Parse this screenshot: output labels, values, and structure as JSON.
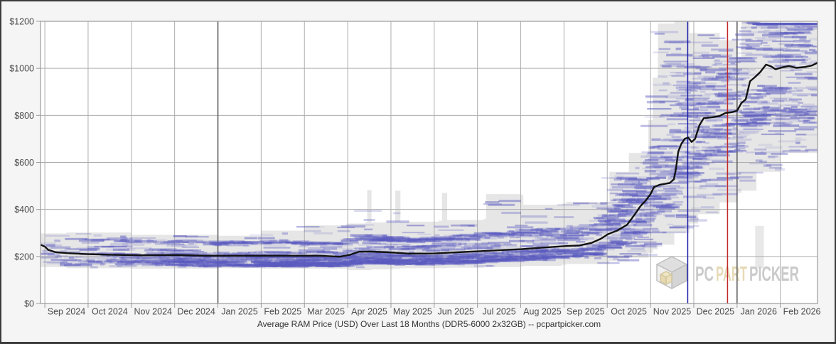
{
  "chart_data": {
    "type": "line",
    "title": "Average RAM Price (USD) Over Last 18 Months (DDR5-6000 2x32GB) -- pcpartpicker.com",
    "xlabel": "",
    "ylabel": "",
    "ylim": [
      0,
      1200
    ],
    "y_values": [
      0,
      200,
      400,
      600,
      800,
      1000,
      1200
    ],
    "y_ticks": [
      "$0",
      "$200",
      "$400",
      "$600",
      "$800",
      "$1000",
      "$1200"
    ],
    "x_range_months": [
      -0.1,
      17.86
    ],
    "month_labels": [
      "Sep 2024",
      "Oct 2024",
      "Nov 2024",
      "Dec 2024",
      "Jan 2025",
      "Feb 2025",
      "Mar 2025",
      "Apr 2025",
      "May 2025",
      "Jun 2025",
      "Jul 2025",
      "Aug 2025",
      "Sep 2025",
      "Oct 2025",
      "Nov 2025",
      "Dec 2025",
      "Jan 2026",
      "Feb 2026"
    ],
    "year_boundary_months": [
      4,
      16
    ],
    "grid": true,
    "legend": "none",
    "series": [
      {
        "name": "average-price",
        "color": "#121212",
        "points": [
          [
            -0.1,
            250
          ],
          [
            0,
            242
          ],
          [
            0.08,
            228
          ],
          [
            0.25,
            218
          ],
          [
            0.53,
            214
          ],
          [
            0.99,
            210
          ],
          [
            1.59,
            207
          ],
          [
            2.25,
            205
          ],
          [
            3.04,
            206
          ],
          [
            3.73,
            203
          ],
          [
            4.55,
            203
          ],
          [
            5.46,
            203
          ],
          [
            6.36,
            203
          ],
          [
            6.82,
            199
          ],
          [
            7.05,
            207
          ],
          [
            7.26,
            220
          ],
          [
            7.51,
            221
          ],
          [
            7.92,
            218
          ],
          [
            8.41,
            212
          ],
          [
            9.01,
            213
          ],
          [
            9.56,
            218
          ],
          [
            10.01,
            222
          ],
          [
            10.55,
            227
          ],
          [
            11.01,
            231
          ],
          [
            11.53,
            238
          ],
          [
            12.01,
            244
          ],
          [
            12.36,
            247
          ],
          [
            12.64,
            258
          ],
          [
            12.85,
            275
          ],
          [
            13.02,
            295
          ],
          [
            13.23,
            310
          ],
          [
            13.46,
            335
          ],
          [
            13.64,
            380
          ],
          [
            13.76,
            412
          ],
          [
            13.89,
            438
          ],
          [
            14.0,
            465
          ],
          [
            14.08,
            495
          ],
          [
            14.21,
            505
          ],
          [
            14.44,
            512
          ],
          [
            14.54,
            528
          ],
          [
            14.59,
            575
          ],
          [
            14.64,
            645
          ],
          [
            14.71,
            678
          ],
          [
            14.79,
            700
          ],
          [
            14.87,
            706
          ],
          [
            14.95,
            687
          ],
          [
            15.03,
            700
          ],
          [
            15.13,
            758
          ],
          [
            15.23,
            788
          ],
          [
            15.43,
            792
          ],
          [
            15.59,
            797
          ],
          [
            15.73,
            810
          ],
          [
            15.89,
            814
          ],
          [
            16.0,
            820
          ],
          [
            16.1,
            852
          ],
          [
            16.2,
            868
          ],
          [
            16.3,
            945
          ],
          [
            16.41,
            962
          ],
          [
            16.54,
            985
          ],
          [
            16.67,
            1016
          ],
          [
            16.79,
            1008
          ],
          [
            16.89,
            996
          ],
          [
            17.04,
            1004
          ],
          [
            17.2,
            1010
          ],
          [
            17.37,
            1002
          ],
          [
            17.57,
            1006
          ],
          [
            17.73,
            1012
          ],
          [
            17.86,
            1024
          ]
        ]
      }
    ],
    "range_band": {
      "color": "#e4e4e4",
      "opacity": 0.92,
      "points": [
        [
          -0.1,
          155,
          298
        ],
        [
          0.5,
          150,
          302
        ],
        [
          2.0,
          148,
          292
        ],
        [
          4.0,
          150,
          288
        ],
        [
          5.0,
          148,
          310
        ],
        [
          6.0,
          148,
          332
        ],
        [
          7.0,
          142,
          340
        ],
        [
          7.4,
          142,
          345
        ],
        [
          7.45,
          142,
          482
        ],
        [
          7.55,
          145,
          345
        ],
        [
          8.05,
          148,
          348
        ],
        [
          8.1,
          148,
          480
        ],
        [
          8.22,
          150,
          348
        ],
        [
          9.1,
          150,
          352
        ],
        [
          9.18,
          150,
          470
        ],
        [
          9.3,
          152,
          355
        ],
        [
          10.15,
          155,
          360
        ],
        [
          10.2,
          155,
          465
        ],
        [
          11.0,
          158,
          462
        ],
        [
          11.06,
          160,
          420
        ],
        [
          11.95,
          165,
          425
        ],
        [
          12.05,
          168,
          432
        ],
        [
          13.05,
          180,
          560
        ],
        [
          13.5,
          195,
          640
        ],
        [
          13.95,
          215,
          780
        ],
        [
          14.05,
          230,
          960
        ],
        [
          14.17,
          250,
          1190
        ],
        [
          14.55,
          300,
          1200
        ],
        [
          14.9,
          340,
          1150
        ],
        [
          15.1,
          380,
          1150
        ],
        [
          15.6,
          430,
          1120
        ],
        [
          16.0,
          470,
          1050
        ],
        [
          16.1,
          480,
          1200
        ],
        [
          16.45,
          560,
          1195
        ],
        [
          17.0,
          640,
          1195
        ],
        [
          17.86,
          660,
          1200
        ]
      ]
    },
    "extra_band_rects": [
      [
        16.42,
        16.62,
        150,
        330,
        "#e8e8e8"
      ]
    ],
    "listing_marks": {
      "color": "#5a5ac0",
      "seed": 1337,
      "trail_count": 190,
      "right_scatter_count": 430,
      "left_scatter_count": 160
    },
    "annotations": {
      "vlines": [
        {
          "name": "blue-event-marker",
          "month": 14.86,
          "color": "#1a1aa6"
        },
        {
          "name": "red-event-marker",
          "month": 15.78,
          "color": "#c22828"
        }
      ]
    },
    "watermark": {
      "text_pc": "PC",
      "text_part": "PART",
      "text_picker": "PICKER",
      "gray": "#c8c8c8",
      "tan": "#e5d9b4"
    }
  },
  "palette": {
    "page_bg": "#f5f5f5",
    "plot_bg": "#ffffff",
    "gridline": "#adadad",
    "year_gridline": "#5f5f5f",
    "plot_border": "#9a9a9a",
    "axis_label": "#4d4d4d",
    "title_color": "#333333"
  }
}
